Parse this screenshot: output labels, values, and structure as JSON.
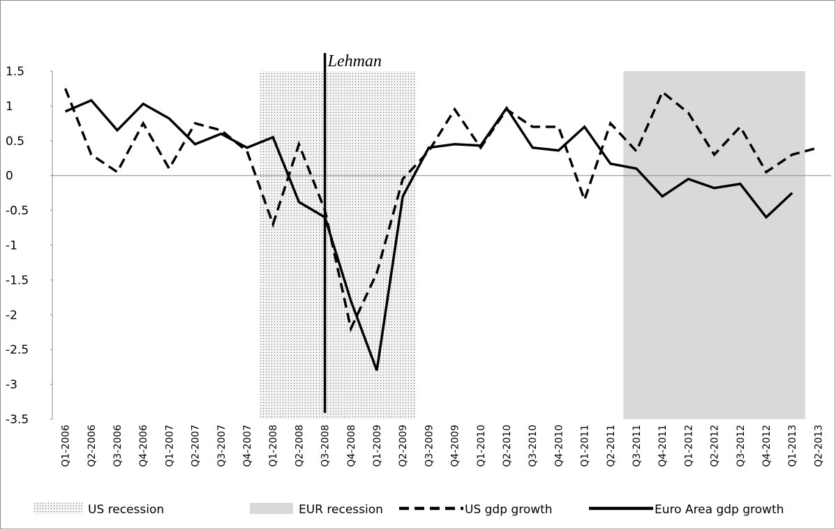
{
  "chart_data": {
    "type": "line",
    "categories": [
      "Q1-2006",
      "Q2-2006",
      "Q3-2006",
      "Q4-2006",
      "Q1-2007",
      "Q2-2007",
      "Q3-2007",
      "Q4-2007",
      "Q1-2008",
      "Q2-2008",
      "Q3-2008",
      "Q4-2008",
      "Q1-2009",
      "Q2-2009",
      "Q3-2009",
      "Q4-2009",
      "Q1-2010",
      "Q2-2010",
      "Q3-2010",
      "Q4-2010",
      "Q1-2011",
      "Q2-2011",
      "Q3-2011",
      "Q4-2011",
      "Q1-2012",
      "Q2-2012",
      "Q3-2012",
      "Q4-2012",
      "Q1-2013",
      "Q2-2013"
    ],
    "shaded_periods": [
      {
        "name": "US recession",
        "start": "Q1-2008",
        "end": "Q2-2009",
        "pattern": "dots",
        "color": "#f2f2f2"
      },
      {
        "name": "EUR recession",
        "start": "Q3-2011",
        "end": "Q1-2013",
        "pattern": "solid",
        "color": "#d9d9d9"
      }
    ],
    "series": [
      {
        "name": "US gdp growth",
        "color": "#000000",
        "dashed": true,
        "values": [
          1.25,
          0.3,
          0.05,
          0.75,
          0.1,
          0.75,
          0.65,
          0.35,
          -0.7,
          0.45,
          -0.5,
          -2.2,
          -1.4,
          -0.05,
          0.35,
          0.95,
          0.4,
          0.95,
          0.7,
          0.7,
          -0.35,
          0.75,
          0.35,
          1.2,
          0.9,
          0.3,
          0.7,
          0.05,
          0.3,
          0.4
        ]
      },
      {
        "name": "Euro Area gdp growth",
        "color": "#000000",
        "dashed": false,
        "values": [
          0.92,
          1.08,
          0.65,
          1.03,
          0.82,
          0.45,
          0.6,
          0.4,
          0.55,
          -0.38,
          -0.6,
          -1.8,
          -2.8,
          -0.3,
          0.4,
          0.45,
          0.43,
          0.97,
          0.4,
          0.36,
          0.7,
          0.17,
          0.1,
          -0.3,
          -0.05,
          -0.18,
          -0.12,
          -0.6,
          -0.25,
          null
        ]
      }
    ],
    "annotations": [
      {
        "text": "Lehman",
        "at": "Q3-2008"
      }
    ],
    "ylim": [
      -3.5,
      1.5
    ],
    "yticks": [
      1.5,
      1,
      0.5,
      0,
      -0.5,
      -1,
      -1.5,
      -2,
      -2.5,
      -3,
      -3.5
    ],
    "legend": "bottom"
  }
}
